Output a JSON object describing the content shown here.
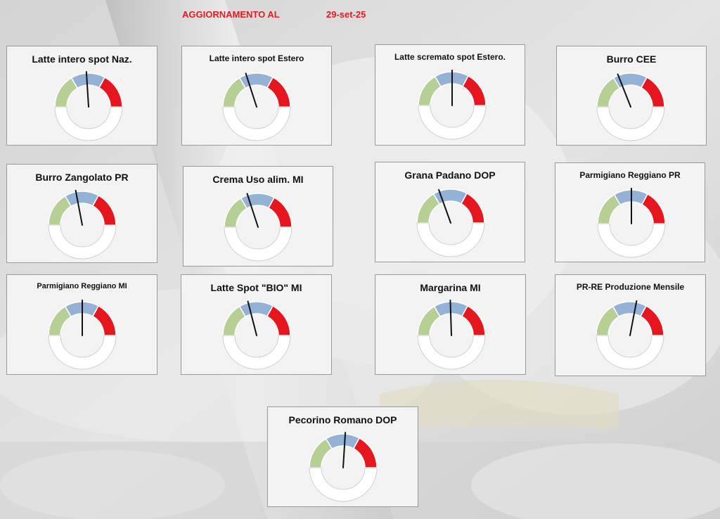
{
  "header": {
    "label": "AGGIORNAMENTO AL",
    "date": "29-set-25"
  },
  "colors": {
    "low": "#b5cf94",
    "mid": "#94b2d6",
    "high": "#e5161e",
    "empty": "#ffffff",
    "needle": "#111111",
    "header_text": "#e31b23"
  },
  "chart_data": [
    {
      "type": "gauge",
      "title": "Latte intero spot Naz.",
      "value": 0.48,
      "range": [
        0,
        1
      ],
      "bands": [
        0.33,
        0.66,
        1
      ]
    },
    {
      "type": "gauge",
      "title": "Latte intero spot Estero",
      "value": 0.4,
      "range": [
        0,
        1
      ],
      "bands": [
        0.33,
        0.66,
        1
      ]
    },
    {
      "type": "gauge",
      "title": "Latte scremato spot Estero.",
      "value": 0.5,
      "range": [
        0,
        1
      ],
      "bands": [
        0.33,
        0.66,
        1
      ]
    },
    {
      "type": "gauge",
      "title": "Burro CEE",
      "value": 0.38,
      "range": [
        0,
        1
      ],
      "bands": [
        0.33,
        0.66,
        1
      ]
    },
    {
      "type": "gauge",
      "title": "Burro Zangolato PR",
      "value": 0.44,
      "range": [
        0,
        1
      ],
      "bands": [
        0.33,
        0.66,
        1
      ]
    },
    {
      "type": "gauge",
      "title": "Crema Uso alim. MI",
      "value": 0.4,
      "range": [
        0,
        1
      ],
      "bands": [
        0.33,
        0.66,
        1
      ]
    },
    {
      "type": "gauge",
      "title": "Grana Padano DOP",
      "value": 0.39,
      "range": [
        0,
        1
      ],
      "bands": [
        0.33,
        0.66,
        1
      ]
    },
    {
      "type": "gauge",
      "title": "Parmigiano Reggiano PR",
      "value": 0.5,
      "range": [
        0,
        1
      ],
      "bands": [
        0.33,
        0.66,
        1
      ]
    },
    {
      "type": "gauge",
      "title": "Parmigiano Reggiano MI",
      "value": 0.5,
      "range": [
        0,
        1
      ],
      "bands": [
        0.33,
        0.66,
        1
      ]
    },
    {
      "type": "gauge",
      "title": "Latte Spot \"BIO\" MI",
      "value": 0.42,
      "range": [
        0,
        1
      ],
      "bands": [
        0.33,
        0.66,
        1
      ]
    },
    {
      "type": "gauge",
      "title": "Margarina MI",
      "value": 0.49,
      "range": [
        0,
        1
      ],
      "bands": [
        0.33,
        0.66,
        1
      ]
    },
    {
      "type": "gauge",
      "title": "PR-RE Produzione Mensile",
      "value": 0.56,
      "range": [
        0,
        1
      ],
      "bands": [
        0.33,
        0.66,
        1
      ]
    },
    {
      "type": "gauge",
      "title": "Pecorino Romano DOP",
      "value": 0.52,
      "range": [
        0,
        1
      ],
      "bands": [
        0.33,
        0.66,
        1
      ]
    }
  ]
}
